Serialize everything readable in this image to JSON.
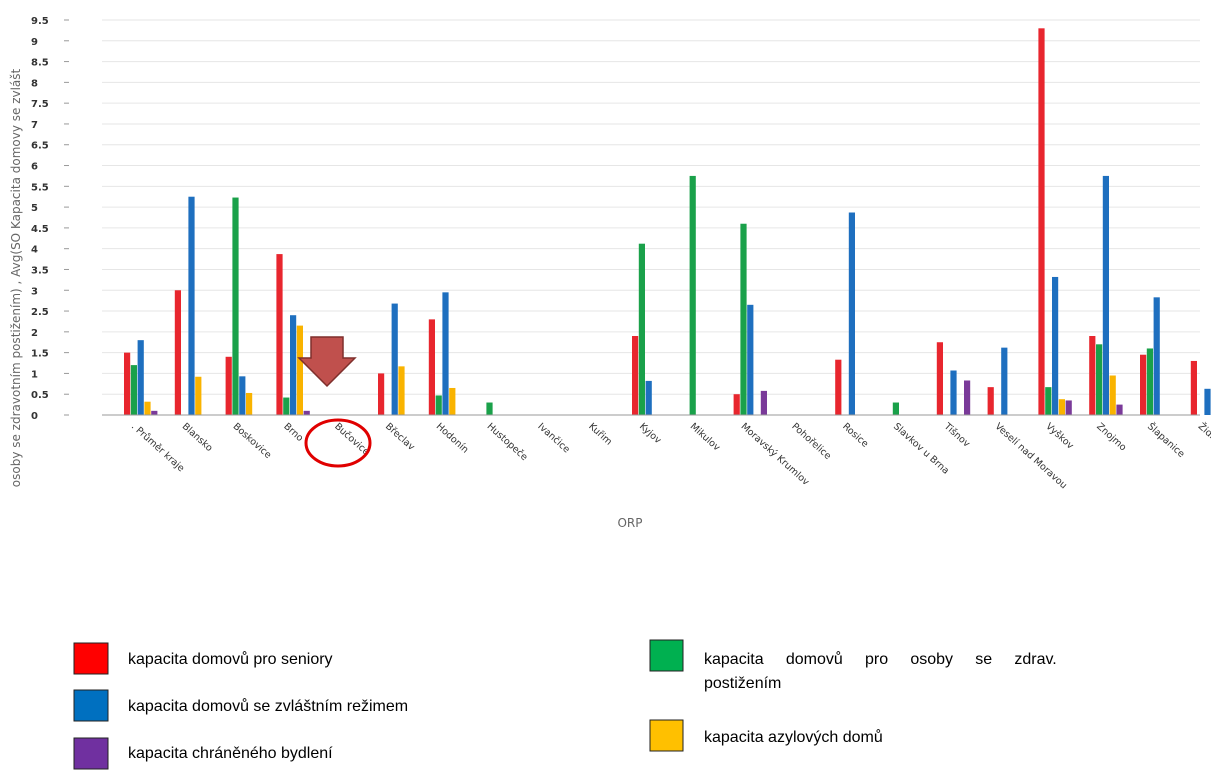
{
  "chart_data": {
    "type": "bar",
    "xlabel": "ORP",
    "ylabel": "osoby se zdravotním postižením) , Avg(SO Kapacita domovy se zvlášt",
    "ylim": [
      0,
      9.5
    ],
    "yticks": [
      "0",
      "0.5",
      "1",
      "1.5",
      "2",
      "2.5",
      "3",
      "3.5",
      "4",
      "4.5",
      "5",
      "5.5",
      "6",
      "6.5",
      "7",
      "7.5",
      "8",
      "8.5",
      "9",
      "9.5"
    ],
    "grid": true,
    "legend_position": "bottom",
    "categories": [
      ". Průměr kraje",
      "Blansko",
      "Boskovice",
      "Brno",
      "Bučovice",
      "Břeclav",
      "Hodonín",
      "Hustopeče",
      "Ivančice",
      "Kuřim",
      "Kyjov",
      "Mikulov",
      "Moravský Krumlov",
      "Pohořelice",
      "Rosice",
      "Slavkov u Brna",
      "Tišnov",
      "Veselí nad Moravou",
      "Vyškov",
      "Znojmo",
      "Šlapanice",
      "Židlochovice"
    ],
    "series": [
      {
        "name": "kapacita domovů pro seniory",
        "color": "#e8262e",
        "values": [
          1.5,
          3.0,
          1.4,
          3.87,
          0,
          1.0,
          2.3,
          0,
          0,
          0,
          1.9,
          0,
          0.5,
          0,
          1.33,
          0,
          1.75,
          0.67,
          9.3,
          1.9,
          1.45,
          1.3
        ]
      },
      {
        "name": "kapacita domovů pro osoby se zdrav. postižením",
        "color": "#1aa14a",
        "values": [
          1.2,
          0,
          5.23,
          0.42,
          0,
          0,
          0.47,
          0.3,
          0,
          0,
          4.12,
          5.75,
          4.6,
          0,
          0,
          0.3,
          0,
          0,
          0.67,
          1.7,
          1.6,
          0
        ]
      },
      {
        "name": "kapacita domovů se zvláštním režimem",
        "color": "#1e6fbf",
        "values": [
          1.8,
          5.25,
          0.93,
          2.4,
          0,
          2.68,
          2.95,
          0,
          0,
          0,
          0.82,
          0,
          2.65,
          0,
          4.87,
          0,
          1.07,
          1.62,
          3.32,
          5.75,
          2.83,
          0.63
        ]
      },
      {
        "name": "kapacita azylových domů",
        "color": "#f9b300",
        "values": [
          0.32,
          0.92,
          0.53,
          2.15,
          0,
          1.17,
          0.65,
          0,
          0,
          0,
          0,
          0,
          0,
          0,
          0,
          0,
          0,
          0,
          0.38,
          0.95,
          0,
          0
        ]
      },
      {
        "name": "kapacita chráněného bydlení",
        "color": "#7a3a99",
        "values": [
          0.1,
          0,
          0,
          0.1,
          0,
          0,
          0,
          0,
          0,
          0,
          0,
          0,
          0.58,
          0,
          0,
          0,
          0.83,
          0,
          0.35,
          0.25,
          0,
          0
        ]
      }
    ]
  },
  "legend": [
    {
      "label": "kapacita domovů pro seniory",
      "color": "#ff0000"
    },
    {
      "label": "kapacita domovů se zvláštním režimem",
      "color": "#0070c0"
    },
    {
      "label": "kapacita chráněného bydlení",
      "color": "#7030a0"
    },
    {
      "label_line1": "kapacita     domovů     pro     osoby     se     zdrav.",
      "label_line2": "postižením",
      "color": "#00b050"
    },
    {
      "label": "kapacita azylových domů",
      "color": "#ffc000"
    }
  ],
  "annotation": {
    "arrow_color": "#c0504d",
    "circle_color": "#e00000"
  }
}
